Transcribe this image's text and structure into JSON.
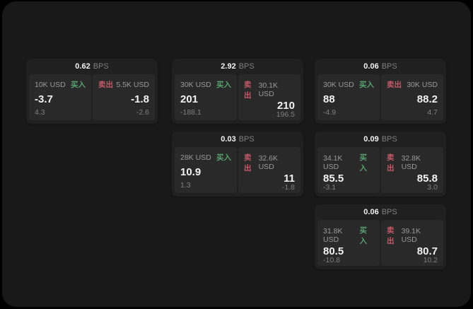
{
  "labels": {
    "bps": "BPS",
    "buy": "买入",
    "sell": "卖出"
  },
  "colors": {
    "outer_bg": "#000000",
    "page_bg": "#191919",
    "card_bg": "#202020",
    "panel_bg": "#292929",
    "text_primary": "#f2f2f2",
    "text_muted": "#9a9a9a",
    "buy_green": "#58a16e",
    "sell_red": "#c25a66"
  },
  "cards": [
    {
      "bps": "0.62",
      "buy": {
        "amount": "10K USD",
        "value": "-3.7",
        "sub": "4.3"
      },
      "sell": {
        "amount": "5.5K USD",
        "value": "-1.8",
        "sub": "-2.6"
      }
    },
    {
      "bps": "2.92",
      "buy": {
        "amount": "30K USD",
        "value": "201",
        "sub": "-188.1"
      },
      "sell": {
        "amount": "30.1K USD",
        "value": "210",
        "sub": "196.5"
      }
    },
    {
      "bps": "0.06",
      "buy": {
        "amount": "30K USD",
        "value": "88",
        "sub": "-4.9"
      },
      "sell": {
        "amount": "30K USD",
        "value": "88.2",
        "sub": "4.7"
      }
    },
    {
      "bps": "0.03",
      "buy": {
        "amount": "28K USD",
        "value": "10.9",
        "sub": "1.3"
      },
      "sell": {
        "amount": "32.6K USD",
        "value": "11",
        "sub": "-1.8"
      }
    },
    {
      "bps": "0.09",
      "buy": {
        "amount": "34.1K USD",
        "value": "85.5",
        "sub": "-3.1"
      },
      "sell": {
        "amount": "32.8K USD",
        "value": "85.8",
        "sub": "3.0"
      }
    },
    {
      "bps": "0.06",
      "buy": {
        "amount": "31.8K USD",
        "value": "80.5",
        "sub": "-10.8"
      },
      "sell": {
        "amount": "39.1K USD",
        "value": "80.7",
        "sub": "10.2"
      }
    }
  ]
}
